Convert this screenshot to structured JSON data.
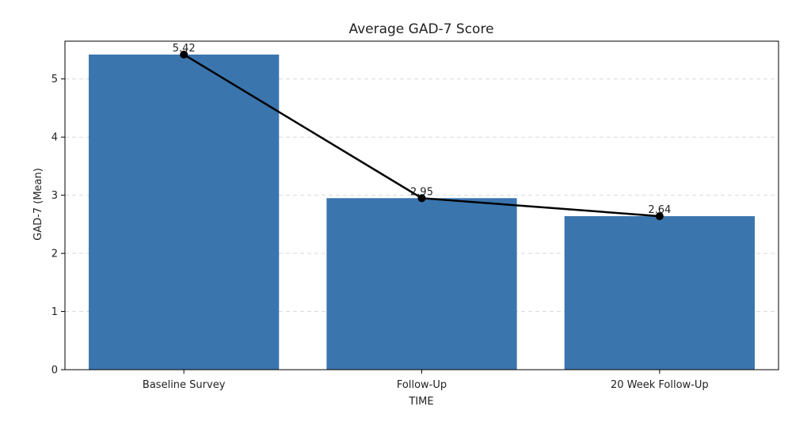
{
  "chart_data": {
    "type": "bar",
    "title": "Average GAD-7 Score",
    "xlabel": "TIME",
    "ylabel": "GAD-7 (Mean)",
    "categories": [
      "Baseline Survey",
      "Follow-Up",
      "20 Week Follow-Up"
    ],
    "values": [
      5.42,
      2.95,
      2.64
    ],
    "data_labels": [
      "5.42",
      "2.95",
      "2.64"
    ],
    "overlay_line": {
      "values": [
        5.42,
        2.95,
        2.64
      ],
      "markers": true
    },
    "ylim": [
      0,
      5.65
    ],
    "yticks": [
      0,
      1,
      2,
      3,
      4,
      5
    ],
    "grid": "y-dashed",
    "colors": {
      "bar": "#3a75ae",
      "line": "#000000",
      "grid": "#d9d9d9"
    }
  }
}
